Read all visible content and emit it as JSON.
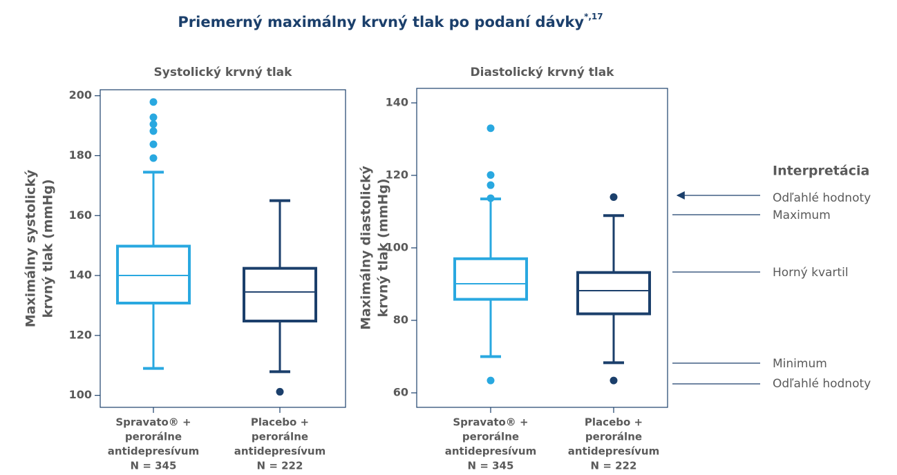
{
  "title": "Priemerný maximálny krvný tlak po podaní dávky",
  "title_superscript": "*,17",
  "chart_data": [
    {
      "type": "box",
      "title": "Systolický krvný tlak",
      "ylabel": [
        "Maximálny systolický",
        "krvný tlak (mmHg)"
      ],
      "categories": [
        [
          "Spravato® +",
          "perorálne",
          "antidepresívum",
          "N = 345"
        ],
        [
          "Placebo +",
          "perorálne",
          "antidepresívum",
          "N = 222"
        ]
      ],
      "ylim": [
        96,
        202
      ],
      "yticks": [
        100,
        120,
        140,
        160,
        180,
        200
      ],
      "boxes": [
        {
          "color": "#29a8e0",
          "min": 109,
          "q1": 130.8,
          "median": 140,
          "q3": 149.8,
          "max": 174.5,
          "outliers": [
            197.9,
            192.8,
            190.5,
            188.2,
            183.8,
            179.2
          ]
        },
        {
          "color": "#1b3f6b",
          "min": 107.9,
          "q1": 124.8,
          "median": 134.5,
          "q3": 142.4,
          "max": 165,
          "outliers": [
            101.2
          ]
        }
      ]
    },
    {
      "type": "box",
      "title": "Diastolický krvný tlak",
      "ylabel": [
        "Maximálny diastolický",
        "krvný tlak (mmHg)"
      ],
      "categories": [
        [
          "Spravato® +",
          "perorálne",
          "antidepresívum",
          "N = 345"
        ],
        [
          "Placebo +",
          "perorálne",
          "antidepresívum",
          "N = 222"
        ]
      ],
      "ylim": [
        56,
        144
      ],
      "yticks": [
        60,
        80,
        100,
        120,
        140
      ],
      "boxes": [
        {
          "color": "#29a8e0",
          "min": 70,
          "q1": 85.8,
          "median": 90.1,
          "q3": 97,
          "max": 113.5,
          "outliers": [
            133,
            120.1,
            117.3,
            113.7,
            63.4
          ]
        },
        {
          "color": "#1b3f6b",
          "min": 68.3,
          "q1": 81.8,
          "median": 88.2,
          "q3": 93.2,
          "max": 108.9,
          "outliers": [
            114,
            63.4
          ]
        }
      ]
    }
  ],
  "interpretation": {
    "title": "Interpretácia",
    "items": [
      "Odľahlé hodnoty",
      "Maximum",
      "Horný kvartil",
      "Minimum",
      "Odľahlé hodnoty"
    ]
  }
}
